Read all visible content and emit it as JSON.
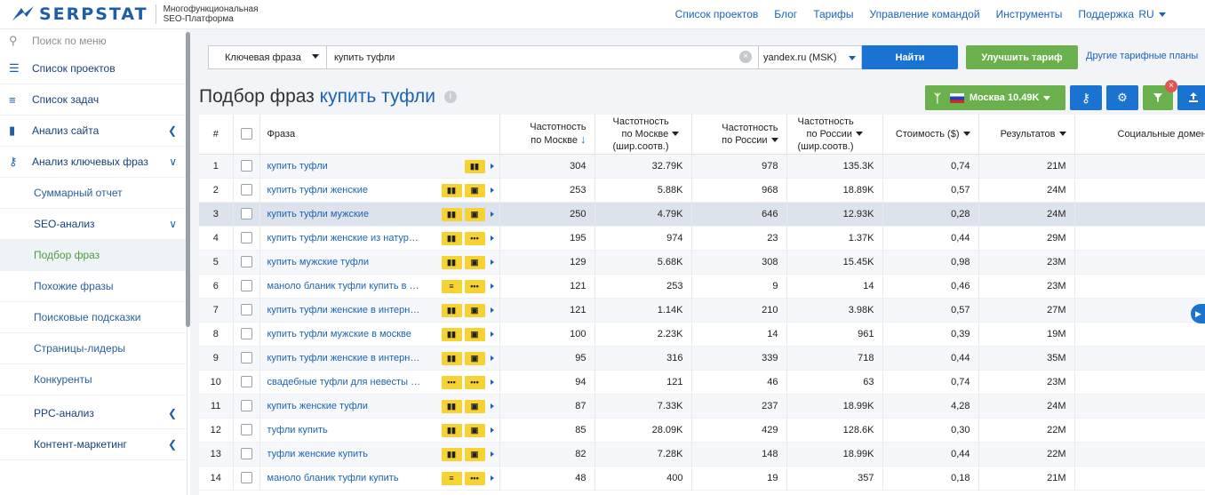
{
  "header": {
    "logo_text": "SERPSTAT",
    "tagline_1": "Многофункциональная",
    "tagline_2": "SEO-Платформа",
    "nav": [
      "Список проектов",
      "Блог",
      "Тарифы",
      "Управление командой",
      "Инструменты",
      "Поддержка"
    ],
    "lang": "RU"
  },
  "sidebar": {
    "search_placeholder": "Поиск по меню",
    "items": [
      {
        "label": "Список проектов",
        "icon": "menu-icon"
      },
      {
        "label": "Список задач",
        "icon": "list-icon"
      },
      {
        "label": "Анализ сайта",
        "icon": "bar-chart-icon"
      },
      {
        "label": "Анализ ключевых фраз",
        "icon": "key-icon"
      },
      {
        "label": "Суммарный отчет"
      },
      {
        "label": "SEO-анализ"
      },
      {
        "label": "Подбор фраз"
      },
      {
        "label": "Похожие фразы"
      },
      {
        "label": "Поисковые подсказки"
      },
      {
        "label": "Страницы-лидеры"
      },
      {
        "label": "Конкуренты"
      },
      {
        "label": "PPC-анализ"
      },
      {
        "label": "Контент-маркетинг"
      }
    ]
  },
  "search": {
    "mode": "Ключевая фраза",
    "query": "купить туфли",
    "database": "yandex.ru (MSK)",
    "submit": "Найти",
    "upgrade": "Улучшить тариф",
    "other_plans": "Другие тарифные планы"
  },
  "page": {
    "title_prefix": "Подбор фраз",
    "title_keyword": "купить туфли",
    "region_label": "Москва 10.49K"
  },
  "colors": {
    "accent_blue": "#1a73d1",
    "accent_green": "#6ab04c",
    "feature_yellow": "#f7d233"
  },
  "table": {
    "headers": {
      "num": "#",
      "phrase": "Фраза",
      "freq_msk_1": "Частотность",
      "freq_msk_2": "по Москве",
      "freq_msk_broad_1": "Частотность",
      "freq_msk_broad_2": "по Москве",
      "freq_msk_broad_3": "(шир.соотв.)",
      "freq_ru_1": "Частотность",
      "freq_ru_2": "по России",
      "freq_ru_broad_1": "Частотность",
      "freq_ru_broad_2": "по России",
      "freq_ru_broad_3": "(шир.соотв.)",
      "cost": "Стоимость ($)",
      "results": "Результатов",
      "social": "Социальные домены"
    },
    "rows": [
      {
        "n": "1",
        "phrase": "купить туфли",
        "f1": "304",
        "f2": "32.79K",
        "f3": "978",
        "f4": "135.3K",
        "cost": "0,74",
        "res": "21M",
        "feat": [
          "chat"
        ]
      },
      {
        "n": "2",
        "phrase": "купить туфли женские",
        "f1": "253",
        "f2": "5.88K",
        "f3": "968",
        "f4": "18.89K",
        "cost": "0,57",
        "res": "24M",
        "feat": [
          "chat",
          "shop"
        ]
      },
      {
        "n": "3",
        "phrase": "купить туфли мужские",
        "f1": "250",
        "f2": "4.79K",
        "f3": "646",
        "f4": "12.93K",
        "cost": "0,28",
        "res": "24M",
        "feat": [
          "chat",
          "shop"
        ]
      },
      {
        "n": "4",
        "phrase": "купить туфли женские из натуральной кожи",
        "f1": "195",
        "f2": "974",
        "f3": "23",
        "f4": "1.37K",
        "cost": "0,44",
        "res": "29M",
        "feat": [
          "chat",
          "more"
        ]
      },
      {
        "n": "5",
        "phrase": "купить мужские туфли",
        "f1": "129",
        "f2": "5.68K",
        "f3": "308",
        "f4": "15.45K",
        "cost": "0,98",
        "res": "23M",
        "feat": [
          "chat",
          "shop"
        ]
      },
      {
        "n": "6",
        "phrase": "маноло бланик туфли купить в москве",
        "f1": "121",
        "f2": "253",
        "f3": "9",
        "f4": "14",
        "cost": "0,46",
        "res": "23M",
        "feat": [
          "text",
          "more"
        ]
      },
      {
        "n": "7",
        "phrase": "купить туфли женские в интернет магазине",
        "f1": "121",
        "f2": "1.14K",
        "f3": "210",
        "f4": "3.98K",
        "cost": "0,57",
        "res": "27M",
        "feat": [
          "chat",
          "shop"
        ]
      },
      {
        "n": "8",
        "phrase": "купить туфли мужские в москве",
        "f1": "100",
        "f2": "2.23K",
        "f3": "14",
        "f4": "961",
        "cost": "0,39",
        "res": "19M",
        "feat": [
          "chat",
          "shop"
        ]
      },
      {
        "n": "9",
        "phrase": "купить туфли женские в интернет магазине недорого",
        "f1": "95",
        "f2": "316",
        "f3": "339",
        "f4": "718",
        "cost": "0,44",
        "res": "35M",
        "feat": [
          "chat",
          "shop"
        ]
      },
      {
        "n": "10",
        "phrase": "свадебные туфли для невесты купить",
        "f1": "94",
        "f2": "121",
        "f3": "46",
        "f4": "63",
        "cost": "0,74",
        "res": "23M",
        "feat": [
          "dots",
          "more"
        ]
      },
      {
        "n": "11",
        "phrase": "купить женские туфли",
        "f1": "87",
        "f2": "7.33K",
        "f3": "237",
        "f4": "18.99K",
        "cost": "4,28",
        "res": "24M",
        "feat": [
          "chat",
          "shop"
        ]
      },
      {
        "n": "12",
        "phrase": "туфли купить",
        "f1": "85",
        "f2": "28.09K",
        "f3": "429",
        "f4": "128.6K",
        "cost": "0,30",
        "res": "22M",
        "feat": [
          "chat",
          "shop"
        ]
      },
      {
        "n": "13",
        "phrase": "туфли женские купить",
        "f1": "82",
        "f2": "7.28K",
        "f3": "148",
        "f4": "18.99K",
        "cost": "0,44",
        "res": "22M",
        "feat": [
          "chat",
          "shop"
        ]
      },
      {
        "n": "14",
        "phrase": "маноло бланик туфли купить",
        "f1": "48",
        "f2": "400",
        "f3": "19",
        "f4": "357",
        "cost": "0,18",
        "res": "21M",
        "feat": [
          "text",
          "more"
        ]
      }
    ]
  }
}
